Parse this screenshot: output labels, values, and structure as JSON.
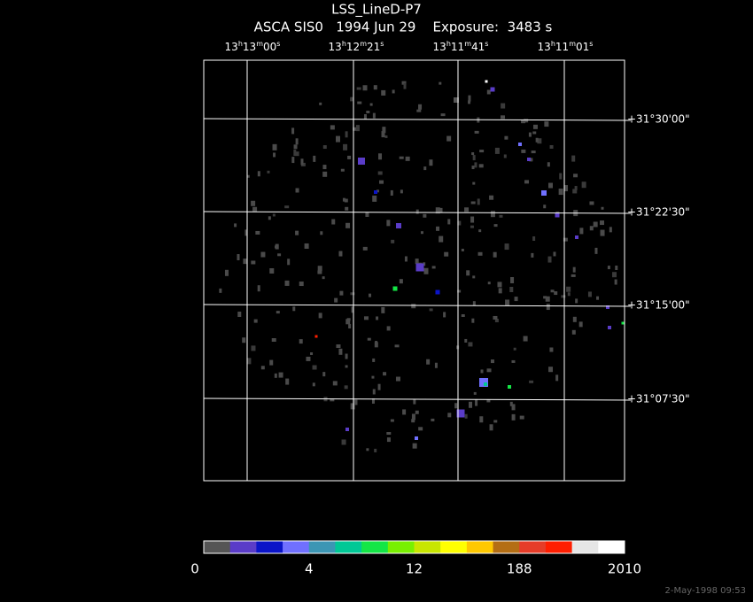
{
  "header": {
    "title": "LSS_LineD-P7",
    "subtitle": "ASCA SIS0   1994 Jun 29    Exposure:  3483 s"
  },
  "ra_labels": [
    [
      "13",
      "h",
      "13",
      "m",
      "00",
      "s"
    ],
    [
      "13",
      "h",
      "12",
      "m",
      "21",
      "s"
    ],
    [
      "13",
      "h",
      "11",
      "m",
      "41",
      "s"
    ],
    [
      "13",
      "h",
      "11",
      "m",
      "01",
      "s"
    ]
  ],
  "dec_labels": [
    "+31°30'00\"",
    "+31°22'30\"",
    "+31°15'00\"",
    "+31°07'30\""
  ],
  "colorbar": {
    "colors": [
      "#555555",
      "#5a3cc8",
      "#0a14c8",
      "#7070ff",
      "#3c96b4",
      "#00c896",
      "#14e646",
      "#78f000",
      "#c8e600",
      "#ffff00",
      "#ffc800",
      "#b46e14",
      "#e63c28",
      "#ff1e00",
      "#e6e6e6",
      "#ffffff"
    ],
    "labels": [
      0,
      4,
      12,
      188,
      2010
    ]
  },
  "timestamp": "2-May-1998 09:53"
}
